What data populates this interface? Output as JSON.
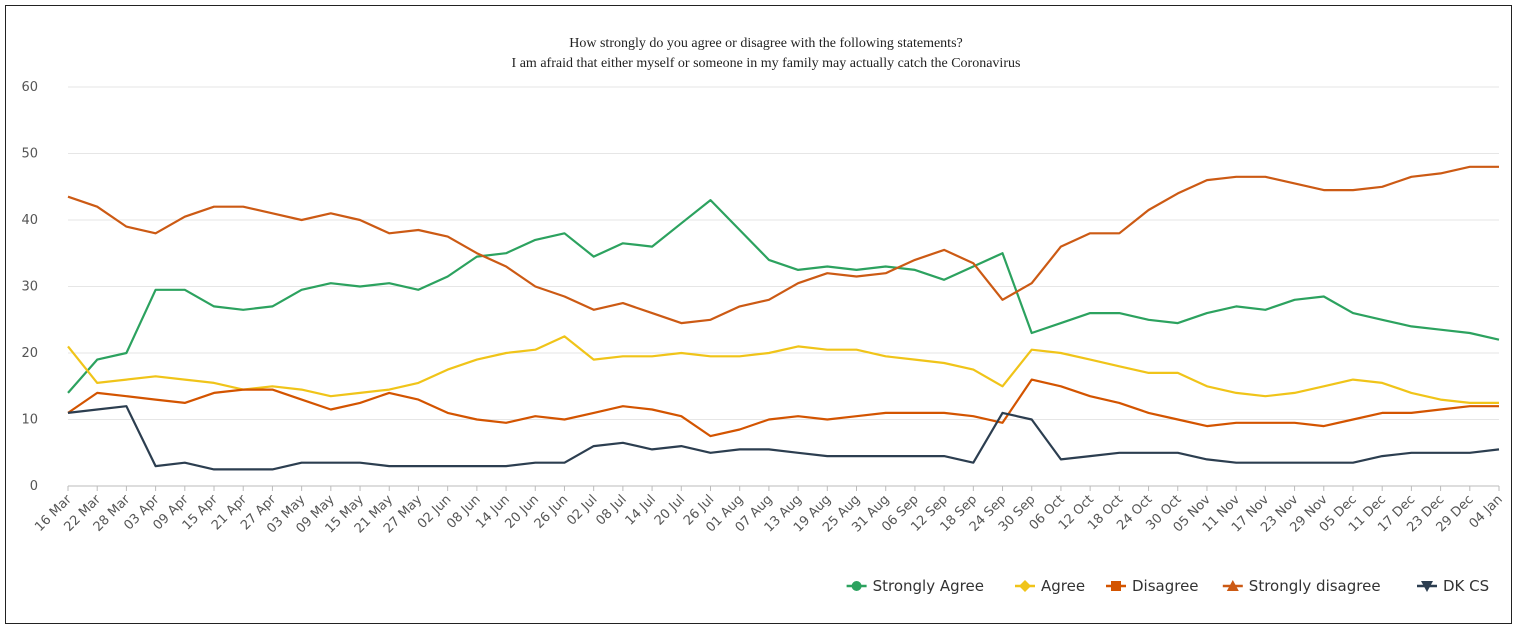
{
  "chart_data": {
    "type": "line",
    "title": "How strongly do you agree or disagree with the following statements?",
    "subtitle": "I am afraid that either myself or someone in my family may actually catch the Coronavirus",
    "xlabel": "",
    "ylabel": "",
    "ylim": [
      0,
      60
    ],
    "y_ticks": [
      0,
      10,
      20,
      30,
      40,
      50,
      60
    ],
    "grid": "horizontal",
    "legend_position": "bottom-right",
    "x_tick_labels": [
      "16 Mar",
      "22 Mar",
      "28 Mar",
      "03 Apr",
      "09 Apr",
      "15 Apr",
      "21 Apr",
      "27 Apr",
      "03 May",
      "09 May",
      "15 May",
      "21 May",
      "27 May",
      "02 Jun",
      "08 Jun",
      "14 Jun",
      "20 Jun",
      "26 Jun",
      "02 Jul",
      "08 Jul",
      "14 Jul",
      "20 Jul",
      "26 Jul",
      "01 Aug",
      "07 Aug",
      "13 Aug",
      "19 Aug",
      "25 Aug",
      "31 Aug",
      "06 Sep",
      "12 Sep",
      "18 Sep",
      "24 Sep",
      "30 Sep",
      "06 Oct",
      "12 Oct",
      "18 Oct",
      "24 Oct",
      "30 Oct",
      "05 Nov",
      "11 Nov",
      "17 Nov",
      "23 Nov",
      "29 Nov",
      "05 Dec",
      "11 Dec",
      "17 Dec",
      "23 Dec",
      "29 Dec",
      "04 Jan"
    ],
    "series": [
      {
        "name": "Strongly Agree",
        "color": "#2ca25f",
        "marker": "circle",
        "values": [
          14,
          19,
          20,
          29.5,
          29.5,
          27,
          26.5,
          27,
          29.5,
          30.5,
          30,
          30.5,
          29.5,
          31.5,
          34.5,
          35,
          37,
          38,
          34.5,
          36.5,
          36,
          39.5,
          43,
          38.5,
          34,
          32.5,
          33,
          32.5,
          33,
          32.5,
          31,
          33,
          35,
          23,
          24.5,
          26,
          26,
          25,
          24.5,
          26,
          27,
          26.5,
          28,
          28.5,
          26,
          25,
          24,
          23.5,
          23,
          22
        ]
      },
      {
        "name": "Agree",
        "color": "#f0c419",
        "marker": "diamond",
        "values": [
          21,
          15.5,
          16,
          16.5,
          16,
          15.5,
          14.5,
          15,
          14.5,
          13.5,
          14,
          14.5,
          15.5,
          17.5,
          19,
          20,
          20.5,
          22.5,
          19,
          19.5,
          19.5,
          20,
          19.5,
          19.5,
          20,
          21,
          20.5,
          20.5,
          19.5,
          19,
          18.5,
          17.5,
          15,
          20.5,
          20,
          19,
          18,
          17,
          17,
          15,
          14,
          13.5,
          14,
          15,
          16,
          15.5,
          14,
          13,
          12.5,
          12.5
        ]
      },
      {
        "name": "Disagree",
        "color": "#d35400",
        "marker": "square",
        "values": [
          11,
          14,
          13.5,
          13,
          12.5,
          14,
          14.5,
          14.5,
          13,
          11.5,
          12.5,
          14,
          13,
          11,
          10,
          9.5,
          10.5,
          10,
          11,
          12,
          11.5,
          10.5,
          7.5,
          8.5,
          10,
          10.5,
          10,
          10.5,
          11,
          11,
          11,
          10.5,
          9.5,
          16,
          15,
          13.5,
          12.5,
          11,
          10,
          9,
          9.5,
          9.5,
          9.5,
          9,
          10,
          11,
          11,
          11.5,
          12,
          12
        ]
      },
      {
        "name": "Strongly disagree",
        "color": "#cc5a14",
        "marker": "triangle-up",
        "values": [
          43.5,
          42,
          39,
          38,
          40.5,
          42,
          42,
          41,
          40,
          41,
          40,
          38,
          38.5,
          37.5,
          35,
          33,
          30,
          28.5,
          26.5,
          27.5,
          26,
          24.5,
          25,
          27,
          28,
          30.5,
          32,
          31.5,
          32,
          34,
          35.5,
          33.5,
          28,
          30.5,
          36,
          38,
          38,
          41.5,
          44,
          46,
          46.5,
          46.5,
          45.5,
          44.5,
          44.5,
          45,
          46.5,
          47,
          48,
          48
        ]
      },
      {
        "name": "DK CS",
        "color": "#2c3e50",
        "marker": "triangle-down",
        "values": [
          11,
          11.5,
          12,
          3,
          3.5,
          2.5,
          2.5,
          2.5,
          3.5,
          3.5,
          3.5,
          3,
          3,
          3,
          3,
          3,
          3.5,
          3.5,
          6,
          6.5,
          5.5,
          6,
          5,
          5.5,
          5.5,
          5,
          4.5,
          4.5,
          4.5,
          4.5,
          4.5,
          3.5,
          11,
          10,
          4,
          4.5,
          5,
          5,
          5,
          4,
          3.5,
          3.5,
          3.5,
          3.5,
          3.5,
          4.5,
          5,
          5,
          5,
          5.5
        ]
      }
    ]
  }
}
